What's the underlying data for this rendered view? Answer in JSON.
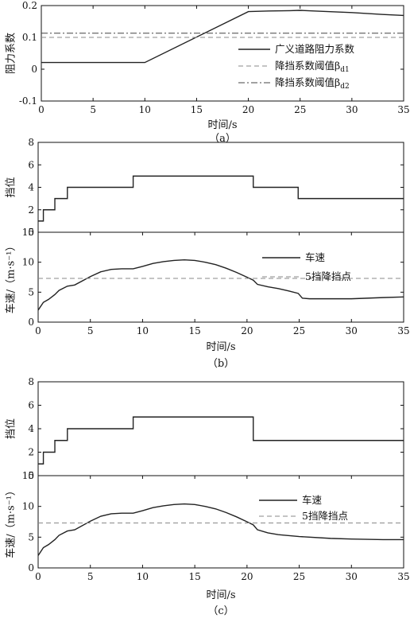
{
  "chart_data": [
    {
      "id": "a",
      "type": "line",
      "caption": "（a）",
      "xlabel": "时间/s",
      "ylabel": "阻力系数",
      "xlim": [
        0,
        35
      ],
      "ylim": [
        -0.1,
        0.2
      ],
      "xticks": [
        0,
        5,
        10,
        15,
        20,
        25,
        30,
        35
      ],
      "yticks": [
        -0.1,
        0,
        0.1,
        0.2
      ],
      "legend_position": "right",
      "series": [
        {
          "name": "广义道路阻力系数",
          "style": "solid",
          "color": "#222222",
          "x": [
            0,
            10,
            20,
            22,
            24,
            25,
            27,
            30,
            33,
            35
          ],
          "y": [
            0.021,
            0.021,
            0.181,
            0.183,
            0.184,
            0.185,
            0.182,
            0.178,
            0.172,
            0.169
          ]
        },
        {
          "name": "降挡系数阈值β",
          "name_sub": "d1",
          "style": "dashed",
          "color": "#888888",
          "x": [
            0,
            35
          ],
          "y": [
            0.1,
            0.1
          ]
        },
        {
          "name": "降挡系数阈值β",
          "name_sub": "d2",
          "style": "dashdot",
          "color": "#444444",
          "x": [
            0,
            35
          ],
          "y": [
            0.113,
            0.113
          ]
        }
      ]
    },
    {
      "id": "b1",
      "type": "line",
      "caption": "",
      "xlabel": "",
      "ylabel": "挡位",
      "xlim": [
        0,
        35
      ],
      "ylim": [
        0,
        8
      ],
      "xticks": [],
      "yticks": [
        0,
        2,
        4,
        6,
        8
      ],
      "series": [
        {
          "name": "",
          "style": "step",
          "color": "#222222",
          "x": [
            0,
            0.5,
            1.6,
            2.8,
            9.1,
            20.6,
            24.9,
            35
          ],
          "y": [
            1,
            2,
            3,
            4,
            5,
            4,
            3,
            3
          ]
        }
      ]
    },
    {
      "id": "b2",
      "type": "line",
      "caption": "（b）",
      "xlabel": "时间/s",
      "ylabel": "车速/（m·s⁻¹）",
      "xlim": [
        0,
        35
      ],
      "ylim": [
        0,
        15
      ],
      "xticks": [
        0,
        5,
        10,
        15,
        20,
        25,
        30,
        35
      ],
      "yticks": [
        0,
        5,
        10,
        15
      ],
      "legend_position": "upper-right",
      "series": [
        {
          "name": "车速",
          "style": "solid",
          "color": "#222222",
          "x": [
            0,
            0.5,
            1,
            1.6,
            2,
            2.8,
            3.5,
            5,
            6,
            7,
            8,
            9.1,
            10,
            11,
            12,
            13,
            14,
            15,
            16,
            17,
            18,
            19,
            20,
            20.6,
            21,
            22,
            23,
            24,
            24.9,
            25.3,
            26,
            28,
            30,
            33,
            35
          ],
          "y": [
            2,
            3.3,
            3.8,
            4.6,
            5.3,
            6.0,
            6.2,
            7.6,
            8.4,
            8.8,
            8.9,
            8.9,
            9.3,
            9.8,
            10.1,
            10.3,
            10.4,
            10.3,
            10.0,
            9.6,
            9.0,
            8.3,
            7.5,
            7.0,
            6.3,
            5.9,
            5.6,
            5.2,
            4.8,
            4.0,
            3.9,
            3.9,
            3.9,
            4.1,
            4.2
          ]
        },
        {
          "name": "5挡降挡点",
          "style": "dashed",
          "color": "#888888",
          "x": [
            0,
            35
          ],
          "y": [
            7.3,
            7.3
          ]
        }
      ]
    },
    {
      "id": "c1",
      "type": "line",
      "caption": "",
      "xlabel": "",
      "ylabel": "挡位",
      "xlim": [
        0,
        35
      ],
      "ylim": [
        0,
        8
      ],
      "xticks": [],
      "yticks": [
        0,
        2,
        4,
        6,
        8
      ],
      "series": [
        {
          "name": "",
          "style": "step",
          "color": "#222222",
          "x": [
            0,
            0.5,
            1.6,
            2.8,
            9.1,
            20.6,
            35
          ],
          "y": [
            1,
            2,
            3,
            4,
            5,
            3,
            3
          ]
        }
      ]
    },
    {
      "id": "c2",
      "type": "line",
      "caption": "（c）",
      "xlabel": "时间/s",
      "ylabel": "车速/（m·s⁻¹）",
      "xlim": [
        0,
        35
      ],
      "ylim": [
        0,
        15
      ],
      "xticks": [
        0,
        5,
        10,
        15,
        20,
        25,
        30,
        35
      ],
      "yticks": [
        0,
        5,
        10,
        15
      ],
      "legend_position": "upper-right",
      "series": [
        {
          "name": "车速",
          "style": "solid",
          "color": "#222222",
          "x": [
            0,
            0.5,
            1,
            1.6,
            2,
            2.8,
            3.5,
            5,
            6,
            7,
            8,
            9.1,
            10,
            11,
            12,
            13,
            14,
            15,
            16,
            17,
            18,
            19,
            20,
            20.6,
            21,
            22,
            23,
            25,
            28,
            30,
            33,
            35
          ],
          "y": [
            2,
            3.3,
            3.8,
            4.6,
            5.3,
            6.0,
            6.2,
            7.6,
            8.4,
            8.8,
            8.9,
            8.9,
            9.3,
            9.8,
            10.1,
            10.3,
            10.4,
            10.3,
            10.0,
            9.6,
            9.0,
            8.3,
            7.5,
            7.0,
            6.2,
            5.7,
            5.4,
            5.1,
            4.8,
            4.7,
            4.6,
            4.6
          ]
        },
        {
          "name": "5挡降挡点",
          "style": "dashed",
          "color": "#888888",
          "x": [
            0,
            35
          ],
          "y": [
            7.3,
            7.3
          ]
        }
      ]
    }
  ]
}
